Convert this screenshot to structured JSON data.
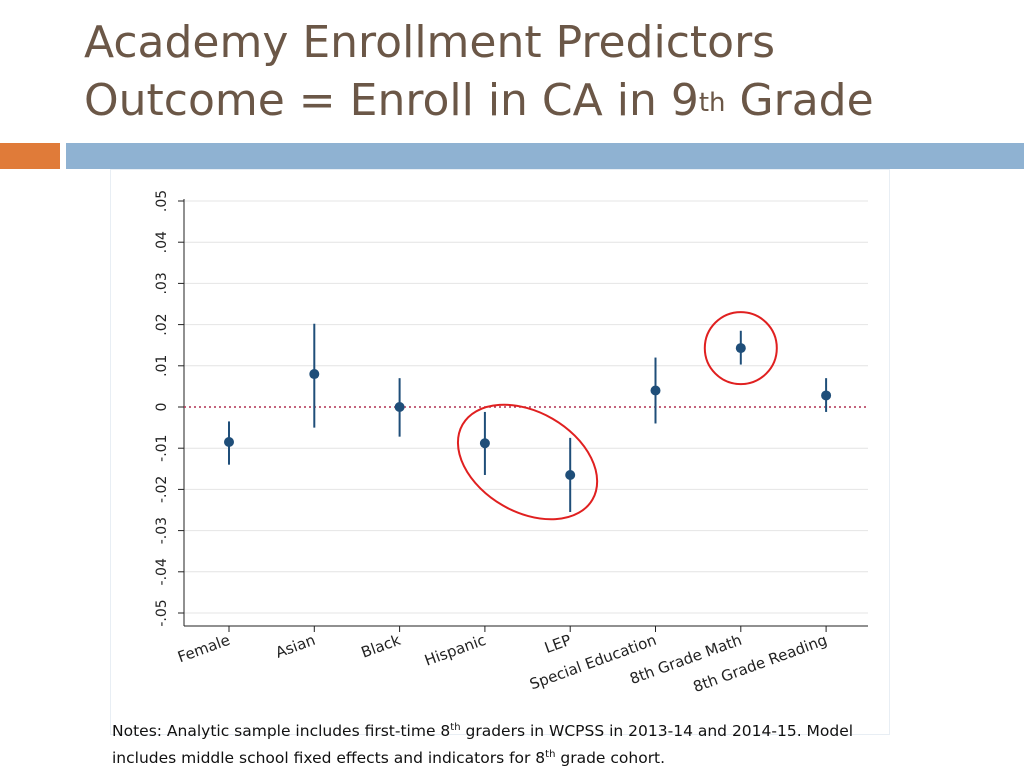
{
  "slide": {
    "title_line1": "Academy Enrollment Predictors",
    "title_line2_pre": "Outcome = Enroll in CA in 9",
    "title_line2_sup": "th",
    "title_line2_post": " Grade",
    "notes_line1_pre": "Notes: Analytic sample includes first-time 8",
    "notes_line1_sup": "th",
    "notes_line1_post": " graders in WCPSS in 2013-14 and 2014-15. Model",
    "notes_line2_pre": "includes middle school fixed effects and indicators for 8",
    "notes_line2_sup": "th",
    "notes_line2_post": " grade cohort.",
    "colors": {
      "title": "#6b5747",
      "accent_orange": "#e07b39",
      "accent_blue": "#8fb2d2"
    }
  },
  "chart_data": {
    "type": "scatter",
    "subtype": "coefficient plot with confidence intervals",
    "categories": [
      "Female",
      "Asian",
      "Black",
      "Hispanic",
      "LEP",
      "Special Education",
      "8th Grade Math",
      "8th Grade Reading"
    ],
    "estimates": [
      -0.0085,
      0.008,
      0.0,
      -0.0088,
      -0.0165,
      0.004,
      0.0143,
      0.0028
    ],
    "ci_low": [
      -0.014,
      -0.005,
      -0.0072,
      -0.0165,
      -0.0255,
      -0.004,
      0.0103,
      -0.0012
    ],
    "ci_high": [
      -0.0035,
      0.0202,
      0.007,
      -0.0012,
      -0.0075,
      0.012,
      0.0185,
      0.007
    ],
    "yticks": [
      "-.05",
      "-.04",
      "-.03",
      "-.02",
      "-.01",
      "0",
      ".01",
      ".02",
      ".03",
      ".04",
      ".05"
    ],
    "ytick_values": [
      -0.05,
      -0.04,
      -0.03,
      -0.02,
      -0.01,
      0,
      0.01,
      0.02,
      0.03,
      0.04,
      0.05
    ],
    "ylim": [
      -0.05,
      0.05
    ],
    "reference_line": 0,
    "highlighted_categories": [
      "Hispanic",
      "LEP",
      "8th Grade Math"
    ],
    "grid": true,
    "colors": {
      "marker": "#1f4e79",
      "ci": "#1f4e79",
      "zero_line": "#b03050",
      "highlight": "#e02020",
      "grid": "#e4e4e4"
    }
  }
}
